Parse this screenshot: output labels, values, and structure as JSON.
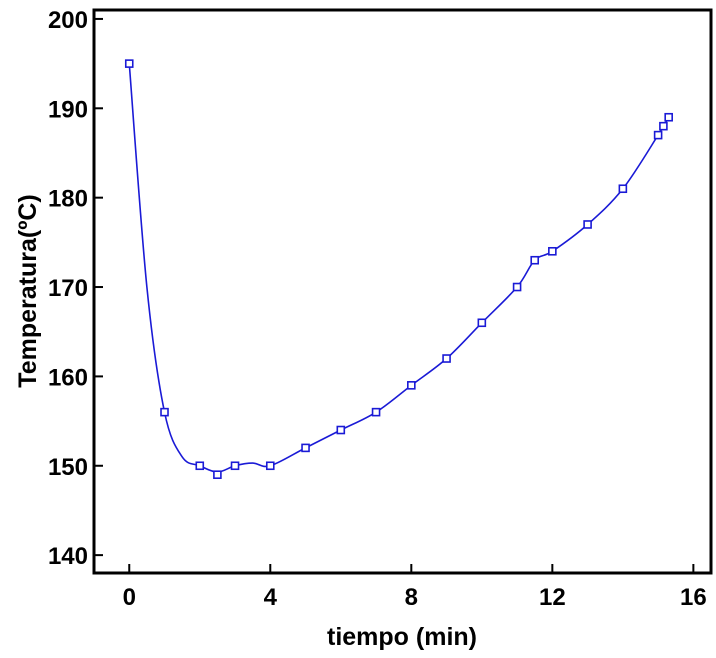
{
  "chart_data": {
    "type": "line",
    "title": "",
    "xlabel": "tiempo (min)",
    "ylabel": "Temperatura(ºC)",
    "xlim": [
      -1,
      16.5
    ],
    "ylim": [
      138,
      201
    ],
    "xticks": [
      0,
      4,
      8,
      12,
      16
    ],
    "yticks": [
      140,
      150,
      160,
      170,
      180,
      190,
      200
    ],
    "grid": false,
    "series_color": "#1a1ad6",
    "series": [
      {
        "marker": "square",
        "x": [
          0,
          1,
          2,
          2.5,
          3,
          4,
          5,
          6,
          7,
          8,
          9,
          10,
          11,
          11.5,
          12,
          13,
          14,
          15,
          15.15,
          15.3
        ],
        "y": [
          195,
          156,
          150,
          149,
          150,
          150,
          152,
          154,
          156,
          159,
          162,
          166,
          170,
          173,
          174,
          177,
          181,
          187,
          188,
          189
        ]
      }
    ],
    "curve": {
      "x": [
        0,
        0.5,
        1,
        1.5,
        2,
        2.5,
        3,
        3.5,
        4,
        5,
        6,
        7,
        8,
        9,
        10,
        11,
        11.5,
        12,
        13,
        14,
        15,
        15.3
      ],
      "y": [
        195,
        170,
        156,
        151,
        150,
        149.3,
        150,
        150.3,
        150,
        152,
        154,
        156,
        159,
        162,
        166,
        170,
        173,
        174,
        177,
        181,
        187,
        189
      ]
    }
  }
}
